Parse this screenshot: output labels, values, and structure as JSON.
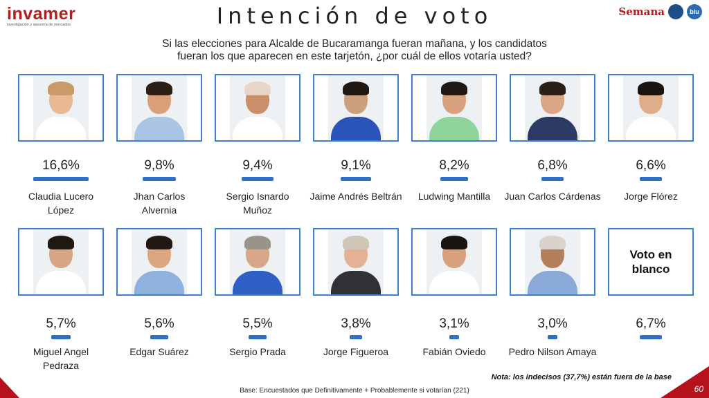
{
  "brand": {
    "name": "invamer",
    "tagline": "investigación y asesoría de mercados"
  },
  "partners": {
    "semana": "Semana",
    "badge1": "",
    "badge2": "blu"
  },
  "title": "Intención de voto",
  "question_line1": "Si las elecciones para Alcalde de Bucaramanga fueran mañana, y los candidatos",
  "question_line2": "fueran los que aparecen en este tarjetón, ¿por cuál de ellos votaría usted?",
  "blank_label_1": "Voto en",
  "blank_label_2": "blanco",
  "note": "Nota: los indecisos (37,7%) están fuera de la base",
  "base_text": "Base: Encuestados que Definitivamente + Probablemente si votarían (221)",
  "page_number": "60",
  "colors": {
    "bar": "#2f6fc6",
    "card_border": "#3d7fd1",
    "accent": "#b5121b"
  },
  "chart_data": {
    "type": "bar",
    "title": "Intención de voto",
    "unit": "%",
    "categories": [
      "Claudia Lucero López",
      "Jhan Carlos Alvernia",
      "Sergio Isnardo Muñoz",
      "Jaime Andrés Beltrán",
      "Ludwing Mantilla",
      "Juan Carlos Cárdenas",
      "Jorge Flórez",
      "Miguel Angel Pedraza",
      "Edgar Suárez",
      "Sergio Prada",
      "Jorge Figueroa",
      "Fabián Oviedo",
      "Pedro Nilson Amaya",
      "Voto en blanco"
    ],
    "values": [
      16.6,
      9.8,
      9.4,
      9.1,
      8.2,
      6.8,
      6.6,
      5.7,
      5.6,
      5.5,
      3.8,
      3.1,
      3.0,
      6.7
    ],
    "labels": [
      "16,6%",
      "9,8%",
      "9,4%",
      "9,1%",
      "8,2%",
      "6,8%",
      "6,6%",
      "5,7%",
      "5,6%",
      "5,5%",
      "3,8%",
      "3,1%",
      "3,0%",
      "6,7%"
    ],
    "name_lines": [
      [
        "Claudia Lucero",
        "López"
      ],
      [
        "Jhan Carlos",
        "Alvernia"
      ],
      [
        "Sergio Isnardo",
        "Muñoz"
      ],
      [
        "Jaime Andrés Beltrán"
      ],
      [
        "Ludwing Mantilla"
      ],
      [
        "Juan Carlos Cárdenas"
      ],
      [
        "Jorge Flórez"
      ],
      [
        "Miguel Angel",
        "Pedraza"
      ],
      [
        "Edgar Suárez"
      ],
      [
        "Sergio Prada"
      ],
      [
        "Jorge Figueroa"
      ],
      [
        "Fabián Oviedo"
      ],
      [
        "Pedro Nilson Amaya"
      ],
      []
    ]
  }
}
